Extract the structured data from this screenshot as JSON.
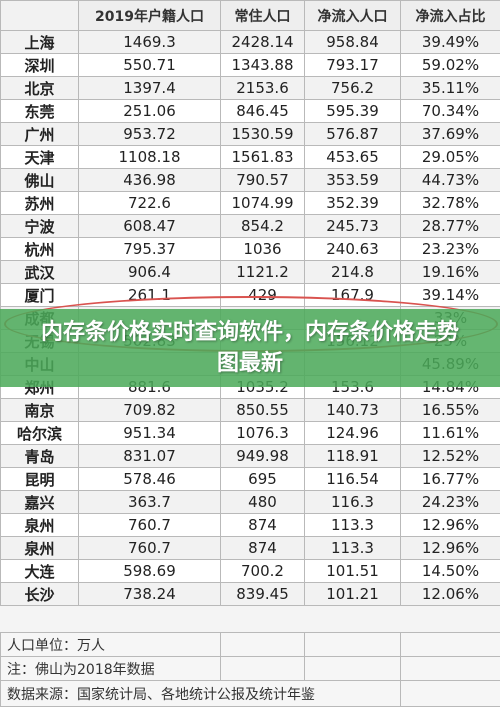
{
  "table": {
    "headers": [
      "",
      "2019年户籍人口",
      "常住人口",
      "净流入人口",
      "净流入占比"
    ],
    "rows": [
      [
        "上海",
        "1469.3",
        "2428.14",
        "958.84",
        "39.49%"
      ],
      [
        "深圳",
        "550.71",
        "1343.88",
        "793.17",
        "59.02%"
      ],
      [
        "北京",
        "1397.4",
        "2153.6",
        "756.2",
        "35.11%"
      ],
      [
        "东莞",
        "251.06",
        "846.45",
        "595.39",
        "70.34%"
      ],
      [
        "广州",
        "953.72",
        "1530.59",
        "576.87",
        "37.69%"
      ],
      [
        "天津",
        "1108.18",
        "1561.83",
        "453.65",
        "29.05%"
      ],
      [
        "佛山",
        "436.98",
        "790.57",
        "353.59",
        "44.73%"
      ],
      [
        "苏州",
        "722.6",
        "1074.99",
        "352.39",
        "32.78%"
      ],
      [
        "宁波",
        "608.47",
        "854.2",
        "245.73",
        "28.77%"
      ],
      [
        "杭州",
        "795.37",
        "1036",
        "240.63",
        "23.23%"
      ],
      [
        "武汉",
        "906.4",
        "1121.2",
        "214.8",
        "19.16%"
      ],
      [
        "厦门",
        "261.1",
        "429",
        "167.9",
        "39.14%"
      ],
      [
        "成都",
        "",
        "",
        "",
        "33%"
      ],
      [
        "无锡",
        "502.83",
        "",
        "156.12",
        "23%"
      ],
      [
        "中山",
        "",
        "",
        "",
        "45.89%"
      ],
      [
        "郑州",
        "881.6",
        "1035.2",
        "153.6",
        "14.84%"
      ],
      [
        "南京",
        "709.82",
        "850.55",
        "140.73",
        "16.55%"
      ],
      [
        "哈尔滨",
        "951.34",
        "1076.3",
        "124.96",
        "11.61%"
      ],
      [
        "青岛",
        "831.07",
        "949.98",
        "118.91",
        "12.52%"
      ],
      [
        "昆明",
        "578.46",
        "695",
        "116.54",
        "16.77%"
      ],
      [
        "嘉兴",
        "363.7",
        "480",
        "116.3",
        "24.23%"
      ],
      [
        "泉州",
        "760.7",
        "874",
        "113.3",
        "12.96%"
      ],
      [
        "泉州",
        "760.7",
        "874",
        "113.3",
        "12.96%"
      ],
      [
        "大连",
        "598.69",
        "700.2",
        "101.51",
        "14.50%"
      ],
      [
        "长沙",
        "738.24",
        "839.45",
        "101.21",
        "12.06%"
      ]
    ]
  },
  "notes": {
    "unit": "人口单位：万人",
    "footnote": "注：佛山为2018年数据",
    "source": "数据来源：国家统计局、各地统计公报及统计年鉴"
  },
  "banner": {
    "title": "内存条价格实时查询软件，内存条价格走势图最新"
  },
  "colors": {
    "banner": "#4caa5a",
    "highlight_circle": "#d9534f",
    "grid": "#b9b9b9"
  }
}
